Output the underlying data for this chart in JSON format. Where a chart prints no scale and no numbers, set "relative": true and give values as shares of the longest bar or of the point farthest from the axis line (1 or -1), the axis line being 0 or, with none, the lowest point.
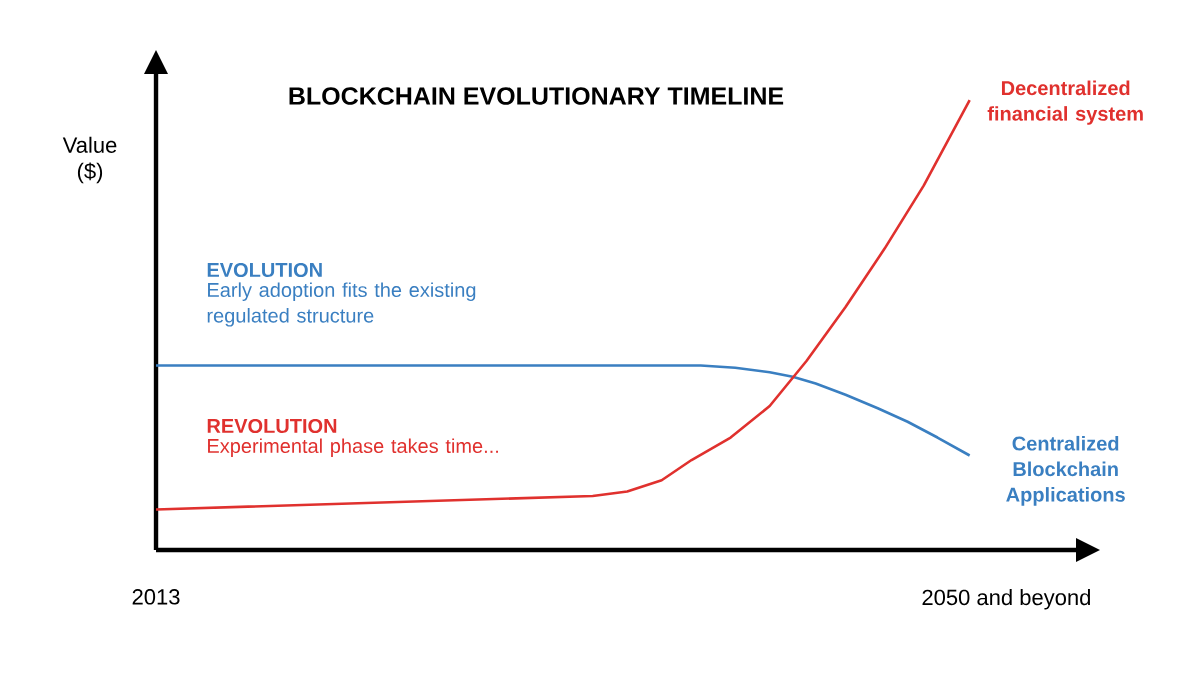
{
  "chart_data": {
    "type": "line",
    "title": "BLOCKCHAIN EVOLUTIONARY TIMELINE",
    "ylabel": "Value ($)",
    "relative": true,
    "xlim": [
      2013,
      2053.2
    ],
    "xticks": [
      2013,
      {
        "value": 2050,
        "label": "2050 and beyond"
      }
    ],
    "series": [
      {
        "name": "EVOLUTION",
        "color": "#3a7fc1",
        "x": [
          2013,
          2036.7,
          2038.2,
          2039.7,
          2040.7,
          2041.7,
          2043.0,
          2044.4,
          2045.7,
          2047.0,
          2048.4
        ],
        "values": [
          0.41,
          0.41,
          0.405,
          0.395,
          0.385,
          0.37,
          0.345,
          0.315,
          0.285,
          0.25,
          0.21
        ]
      },
      {
        "name": "REVOLUTION",
        "color": "#e0312e",
        "x": [
          2013,
          2032.0,
          2033.5,
          2035.0,
          2036.3,
          2038.0,
          2039.7,
          2041.3,
          2043.0,
          2044.7,
          2046.4,
          2048.4
        ],
        "values": [
          0.09,
          0.12,
          0.13,
          0.155,
          0.2,
          0.25,
          0.32,
          0.42,
          0.54,
          0.67,
          0.81,
          1
        ]
      }
    ],
    "annotations": [
      "Early adoption fits the existing regulated structure",
      "Experimental phase takes time...",
      {
        "text": "Centralized Blockchain Applications",
        "x": 2048.4,
        "y": 0.21
      },
      {
        "text": "Decentralized financial system",
        "x": 2048.4,
        "y": 1
      }
    ],
    "grid": false,
    "marker": "none",
    "line_style": "solid"
  }
}
